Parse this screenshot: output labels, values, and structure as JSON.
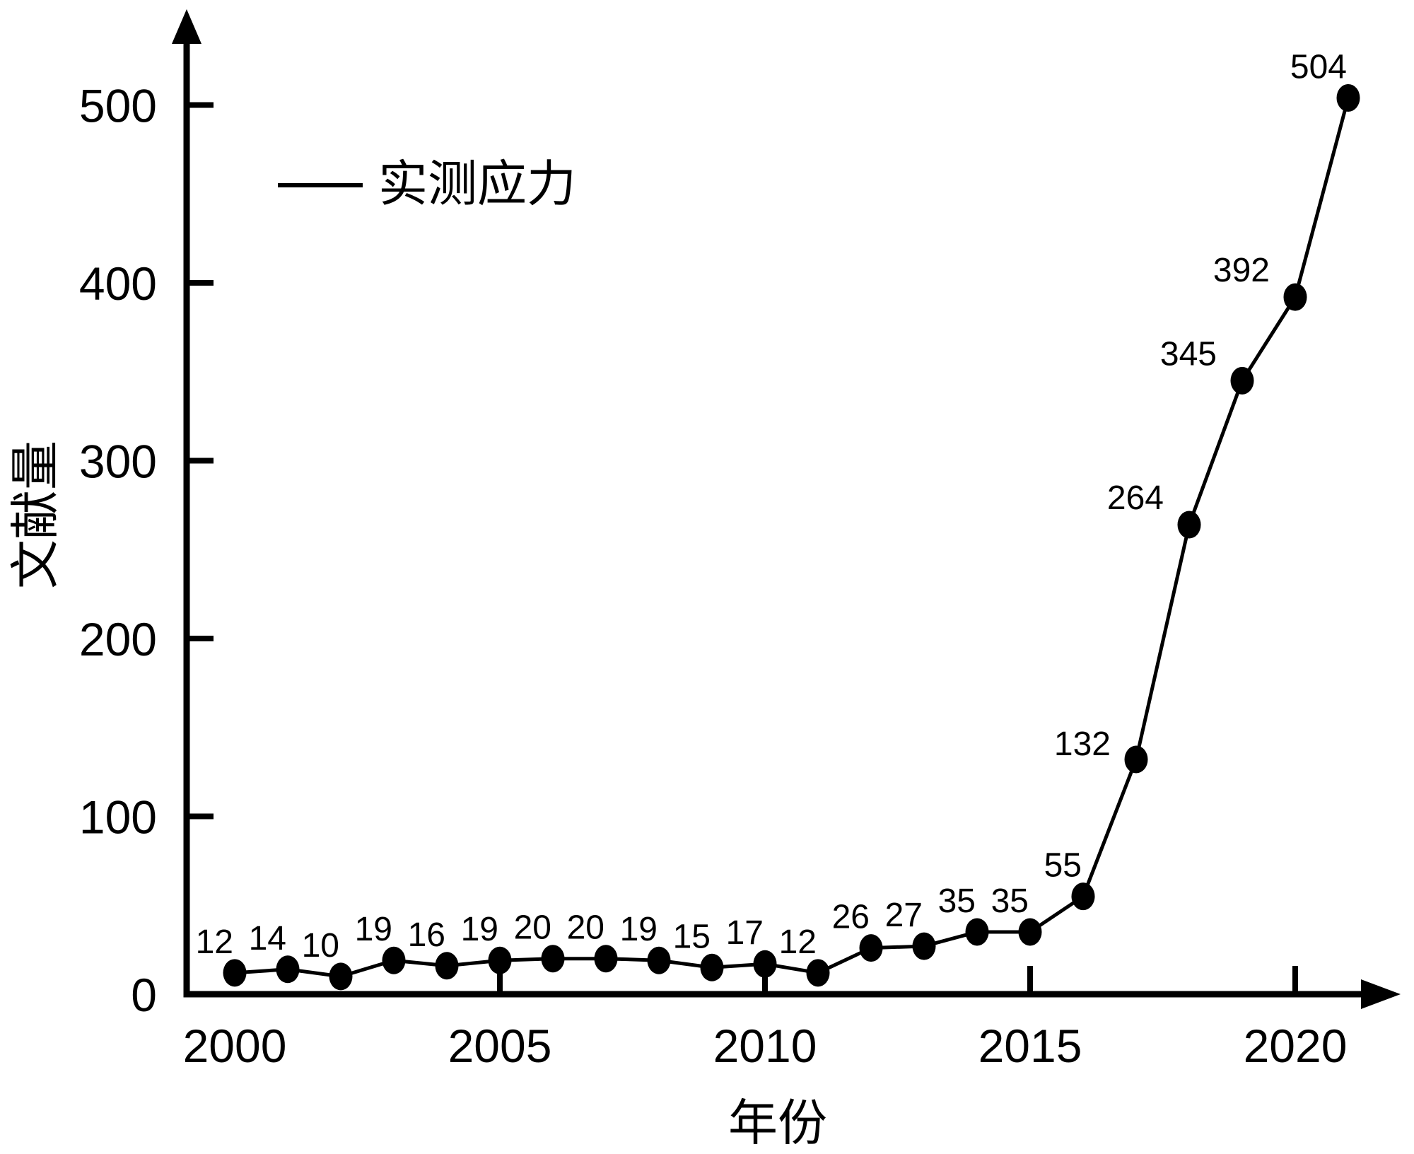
{
  "figure": {
    "background_color": "#ffffff",
    "ink_color": "#000000"
  },
  "chart_data": {
    "type": "line",
    "title": "",
    "xlabel": "年份",
    "ylabel": "文献量",
    "grid": false,
    "legend_position": "upper-left-inside",
    "series": [
      {
        "name": "实测应力",
        "color": "#000000",
        "marker": "filled-circle",
        "line_style": "solid",
        "x": [
          2000,
          2001,
          2002,
          2003,
          2004,
          2005,
          2006,
          2007,
          2008,
          2009,
          2010,
          2011,
          2012,
          2013,
          2014,
          2015,
          2016,
          2017,
          2018,
          2019,
          2020,
          2021
        ],
        "values": [
          12,
          14,
          10,
          19,
          16,
          19,
          20,
          20,
          19,
          15,
          17,
          12,
          26,
          27,
          35,
          35,
          55,
          132,
          264,
          345,
          392,
          504
        ]
      }
    ],
    "point_labels": [
      "12",
      "14",
      "10",
      "19",
      "16",
      "19",
      "20",
      "20",
      "19",
      "15",
      "17",
      "12",
      "26",
      "27",
      "35",
      "35",
      "55",
      "132",
      "264",
      "345",
      "392",
      "504"
    ],
    "x_tick_labels": [
      "2000",
      "2005",
      "2010",
      "2015",
      "2020"
    ],
    "x_tick_label_years": [
      2000,
      2005,
      2010,
      2015,
      2020
    ],
    "x_ticks_marked_years": [
      2005,
      2010,
      2015,
      2020
    ],
    "y_tick_labels": [
      "0",
      "100",
      "200",
      "300",
      "400",
      "500"
    ],
    "y_tick_values": [
      0,
      100,
      200,
      300,
      400,
      500
    ],
    "y_ticks_marked_values": [
      100,
      200,
      300,
      400,
      500
    ],
    "xlim": [
      2000,
      2021
    ],
    "ylim": [
      0,
      550
    ]
  }
}
